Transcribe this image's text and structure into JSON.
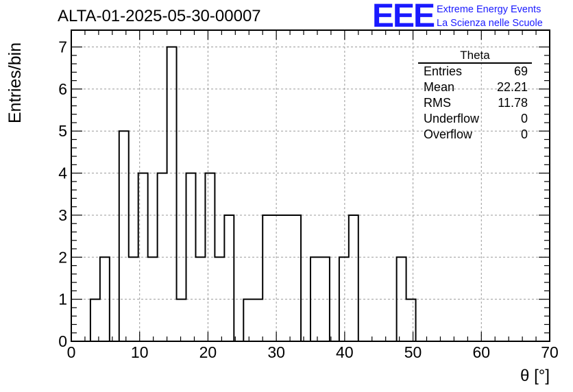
{
  "title": "ALTA-01-2025-05-30-00007",
  "logo": {
    "mark": "EEE",
    "line1": "Extreme Energy Events",
    "line2": "La Scienza nelle Scuole",
    "color": "#1a1aff"
  },
  "stats": {
    "title": "Theta",
    "rows": [
      {
        "label": "Entries",
        "value": "69"
      },
      {
        "label": "Mean",
        "value": "22.21"
      },
      {
        "label": "RMS",
        "value": "11.78"
      },
      {
        "label": "Underflow",
        "value": "0"
      },
      {
        "label": "Overflow",
        "value": "0"
      }
    ]
  },
  "chart_data": {
    "type": "histogram",
    "title": "ALTA-01-2025-05-30-00007",
    "xlabel": "θ [°]",
    "ylabel": "Entries/bin",
    "xlim": [
      0,
      70
    ],
    "ylim": [
      0,
      7.4
    ],
    "grid": true,
    "bin_width": 1.4,
    "bin_edges_start": 0,
    "counts": [
      0,
      0,
      1,
      2,
      0,
      5,
      2,
      4,
      2,
      4,
      7,
      1,
      4,
      2,
      4,
      2,
      3,
      0,
      1,
      1,
      3,
      3,
      3,
      3,
      0,
      2,
      2,
      0,
      2,
      3,
      0,
      0,
      0,
      0,
      2,
      1,
      0,
      0,
      0,
      0,
      0,
      0,
      0,
      0,
      0,
      0,
      0,
      0,
      0,
      0
    ],
    "x_ticks": [
      "0",
      "10",
      "20",
      "30",
      "40",
      "50",
      "60",
      "70"
    ],
    "y_ticks": [
      "0",
      "1",
      "2",
      "3",
      "4",
      "5",
      "6",
      "7"
    ]
  }
}
